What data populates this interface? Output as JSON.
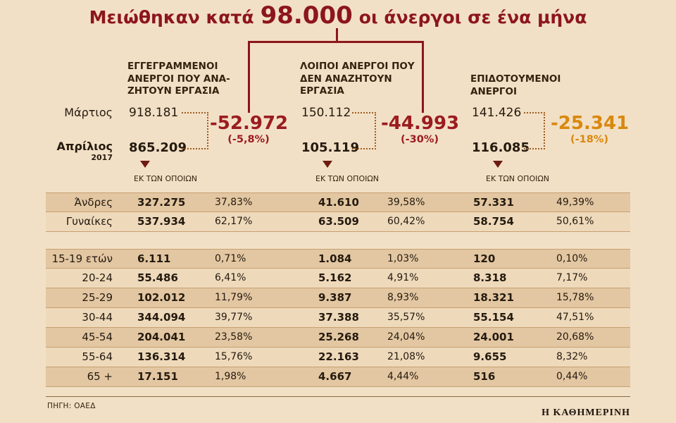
{
  "title": {
    "prefix": "Μειώθηκαν κατά",
    "big": "98.000",
    "suffix": "οι άνεργοι σε ένα μήνα"
  },
  "periods": {
    "march": "Μάρτιος",
    "april": "Απρίλιος",
    "year": "2017"
  },
  "footer": {
    "source": "ΠΗΓΗ: ΟΑΕΔ",
    "brand": "Η ΚΑΘΗΜΕΡΙΝΗ"
  },
  "chart_data": {
    "type": "table",
    "title": "Μειώθηκαν κατά 98.000 οι άνεργοι σε ένα μήνα",
    "columns": [
      {
        "heading": "ΕΓΓΕΓΡΑΜΜΕΝΟΙ\nΑΝΕΡΓΟΙ ΠΟΥ ΑΝΑ-\nΖΗΤΟΥΝ ΕΡΓΑΣΙΑ",
        "march": "918.181",
        "april": "865.209",
        "change": "-52.972",
        "change_pct": "(-5,8%)",
        "change_color": "#9b1c20",
        "of_which": "ΕΚ ΤΩΝ ΟΠΟΙΩΝ"
      },
      {
        "heading": "ΛΟΙΠΟΙ ΑΝΕΡΓΟΙ ΠΟΥ\nΔΕΝ ΑΝΑΖΗΤΟΥΝ\nΕΡΓΑΣΙΑ",
        "march": "150.112",
        "april": "105.119",
        "change": "-44.993",
        "change_pct": "(-30%)",
        "change_color": "#9b1c20",
        "of_which": "ΕΚ ΤΩΝ ΟΠΟΙΩΝ"
      },
      {
        "heading": "ΕΠΙΔΟΤΟΥΜΕΝΟΙ\nΑΝΕΡΓΟΙ",
        "march": "141.426",
        "april": "116.085",
        "change": "-25.341",
        "change_pct": "(-18%)",
        "change_color": "#d9880f",
        "of_which": "ΕΚ ΤΩΝ ΟΠΟΙΩΝ"
      }
    ],
    "gender_rows": [
      {
        "label": "Άνδρες",
        "cells": [
          "327.275",
          "37,83%",
          "41.610",
          "39,58%",
          "57.331",
          "49,39%"
        ]
      },
      {
        "label": "Γυναίκες",
        "cells": [
          "537.934",
          "62,17%",
          "63.509",
          "60,42%",
          "58.754",
          "50,61%"
        ]
      }
    ],
    "age_rows": [
      {
        "label": "15-19 ετών",
        "cells": [
          "6.111",
          "0,71%",
          "1.084",
          "1,03%",
          "120",
          "0,10%"
        ]
      },
      {
        "label": "20-24",
        "cells": [
          "55.486",
          "6,41%",
          "5.162",
          "4,91%",
          "8.318",
          "7,17%"
        ]
      },
      {
        "label": "25-29",
        "cells": [
          "102.012",
          "11,79%",
          "9.387",
          "8,93%",
          "18.321",
          "15,78%"
        ]
      },
      {
        "label": "30-44",
        "cells": [
          "344.094",
          "39,77%",
          "37.388",
          "35,57%",
          "55.154",
          "47,51%"
        ]
      },
      {
        "label": "45-54",
        "cells": [
          "204.041",
          "23,58%",
          "25.268",
          "24,04%",
          "24.001",
          "20,68%"
        ]
      },
      {
        "label": "55-64",
        "cells": [
          "136.314",
          "15,76%",
          "22.163",
          "21,08%",
          "9.655",
          "8,32%"
        ]
      },
      {
        "label": "65 +",
        "cells": [
          "17.151",
          "1,98%",
          "4.667",
          "4,44%",
          "516",
          "0,44%"
        ]
      }
    ],
    "colors": {
      "background": "#f2e0c6",
      "title_red": "#8c161b",
      "stripe_dark": "#e3c7a2",
      "stripe_light": "#eed9bb",
      "negative_red": "#9b1c20",
      "negative_orange": "#d9880f"
    }
  }
}
